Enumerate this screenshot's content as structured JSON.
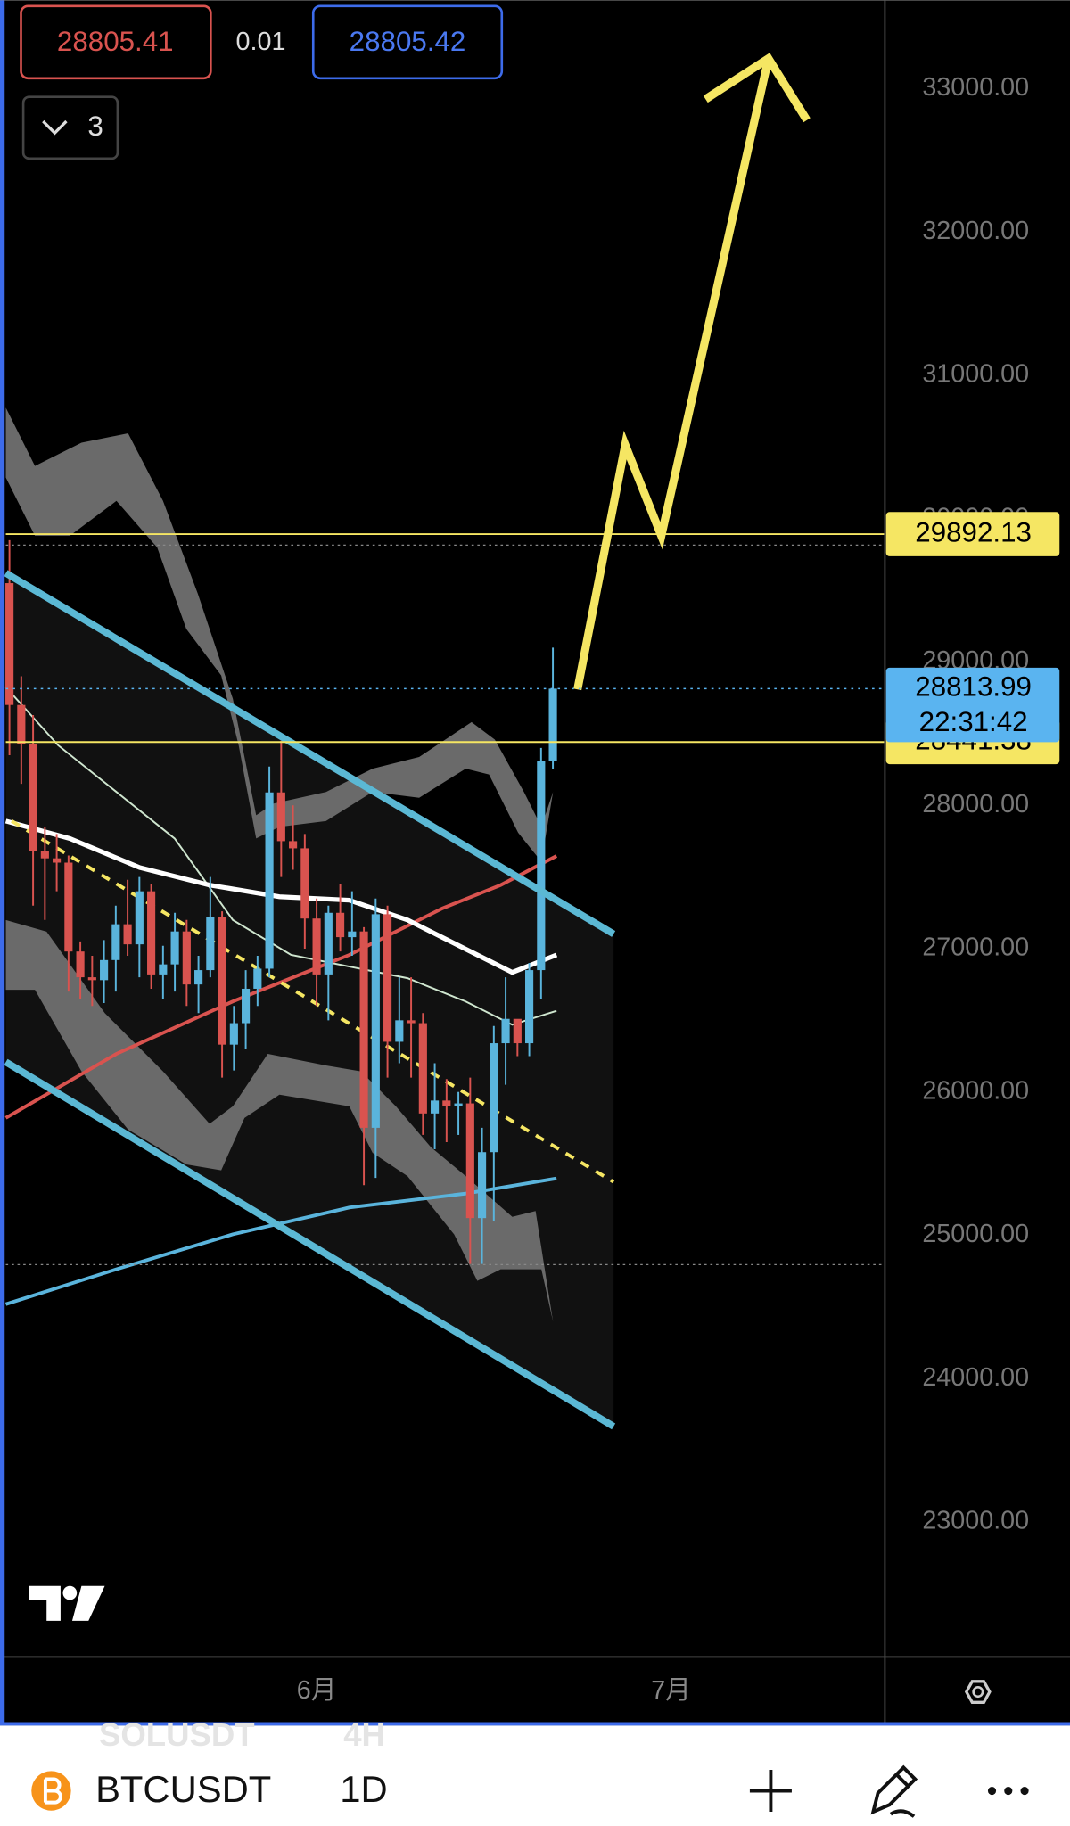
{
  "toolbar": {
    "sell": "28805.41",
    "spread": "0.01",
    "buy": "28805.42",
    "indicator_count": "3"
  },
  "chart_data": {
    "type": "candlestick",
    "up_color": "#5ab4dc",
    "down_color": "#d9534f",
    "x": [
      0,
      1,
      2,
      3,
      4,
      5,
      6,
      7,
      8,
      9,
      10,
      11,
      12,
      13,
      14,
      15,
      16,
      17,
      18,
      19,
      20,
      21,
      22,
      23,
      24,
      25,
      26,
      27,
      28,
      29,
      30,
      31,
      32,
      33,
      34,
      35,
      36,
      37,
      38,
      39,
      40,
      41,
      42,
      43,
      44,
      45,
      46
    ],
    "open": [
      29550,
      28700,
      28430,
      27680,
      27630,
      27600,
      26980,
      26800,
      26780,
      26920,
      27170,
      27030,
      27400,
      26820,
      26890,
      27120,
      26750,
      26850,
      27220,
      26330,
      26480,
      26720,
      26860,
      28090,
      27750,
      27700,
      27210,
      26820,
      27250,
      27080,
      27120,
      25750,
      27240,
      26350,
      26500,
      26480,
      25850,
      25940,
      25900,
      25920,
      25120,
      25580,
      26340,
      26510,
      26340,
      26850,
      28310
    ],
    "high": [
      29850,
      28900,
      28630,
      27850,
      27800,
      27650,
      27050,
      26950,
      27060,
      27300,
      27480,
      27500,
      27450,
      27020,
      27250,
      27200,
      26950,
      27500,
      27260,
      26600,
      26850,
      26950,
      28270,
      28450,
      28000,
      27800,
      27350,
      27300,
      27450,
      27400,
      27150,
      27350,
      27300,
      26800,
      26800,
      26550,
      26200,
      26090,
      26000,
      26100,
      25750,
      26460,
      26800,
      26500,
      26900,
      28400,
      29100
    ],
    "low": [
      28350,
      28150,
      27300,
      27200,
      27400,
      26700,
      26650,
      26600,
      26620,
      26700,
      26950,
      26800,
      26720,
      26650,
      26700,
      26600,
      26550,
      26800,
      26100,
      26150,
      26300,
      26600,
      26800,
      27500,
      27550,
      27000,
      26600,
      26500,
      26980,
      26950,
      25350,
      25400,
      26100,
      26200,
      26100,
      25700,
      25600,
      25650,
      25700,
      24800,
      24800,
      25100,
      26050,
      26250,
      26250,
      26650,
      28250
    ],
    "close": [
      28700,
      28430,
      27680,
      27630,
      27600,
      26980,
      26800,
      26780,
      26920,
      27170,
      27030,
      27400,
      26820,
      26890,
      27120,
      26750,
      26850,
      27220,
      26330,
      26480,
      26720,
      26860,
      28090,
      27750,
      27700,
      27210,
      26820,
      27250,
      27080,
      27120,
      25750,
      27240,
      26350,
      26500,
      26480,
      25850,
      25940,
      25900,
      25920,
      25120,
      25580,
      26340,
      26510,
      26340,
      26850,
      28310,
      28813.99
    ],
    "xlim": [
      -0.8,
      74.1
    ],
    "xticks": [
      {
        "value": 26,
        "label": "6月"
      },
      {
        "value": 56,
        "label": "7月"
      }
    ],
    "ylim": [
      22058,
      33617
    ],
    "yticks": [
      {
        "value": 23000,
        "label": "23000.00"
      },
      {
        "value": 24000,
        "label": "24000.00"
      },
      {
        "value": 25000,
        "label": "25000.00"
      },
      {
        "value": 26000,
        "label": "26000.00"
      },
      {
        "value": 27000,
        "label": "27000.00"
      },
      {
        "value": 28000,
        "label": "28000.00"
      },
      {
        "value": 29000,
        "label": "29000.00"
      },
      {
        "value": 30000,
        "label": "30000.00"
      },
      {
        "value": 31000,
        "label": "31000.00"
      },
      {
        "value": 32000,
        "label": "32000.00"
      },
      {
        "value": 33000,
        "label": "33000.00"
      }
    ],
    "hlines": [
      29892.13,
      28441.38
    ],
    "hline_color": "#f5e663",
    "last_price": 28813.99,
    "countdown": "22:31:42",
    "last_price_color": "#5ab4f0"
  },
  "bottom_bar": {
    "ghost_symbol": "SOLUSDT",
    "ghost_interval": "4H",
    "symbol": "BTCUSDT",
    "interval": "1D"
  }
}
